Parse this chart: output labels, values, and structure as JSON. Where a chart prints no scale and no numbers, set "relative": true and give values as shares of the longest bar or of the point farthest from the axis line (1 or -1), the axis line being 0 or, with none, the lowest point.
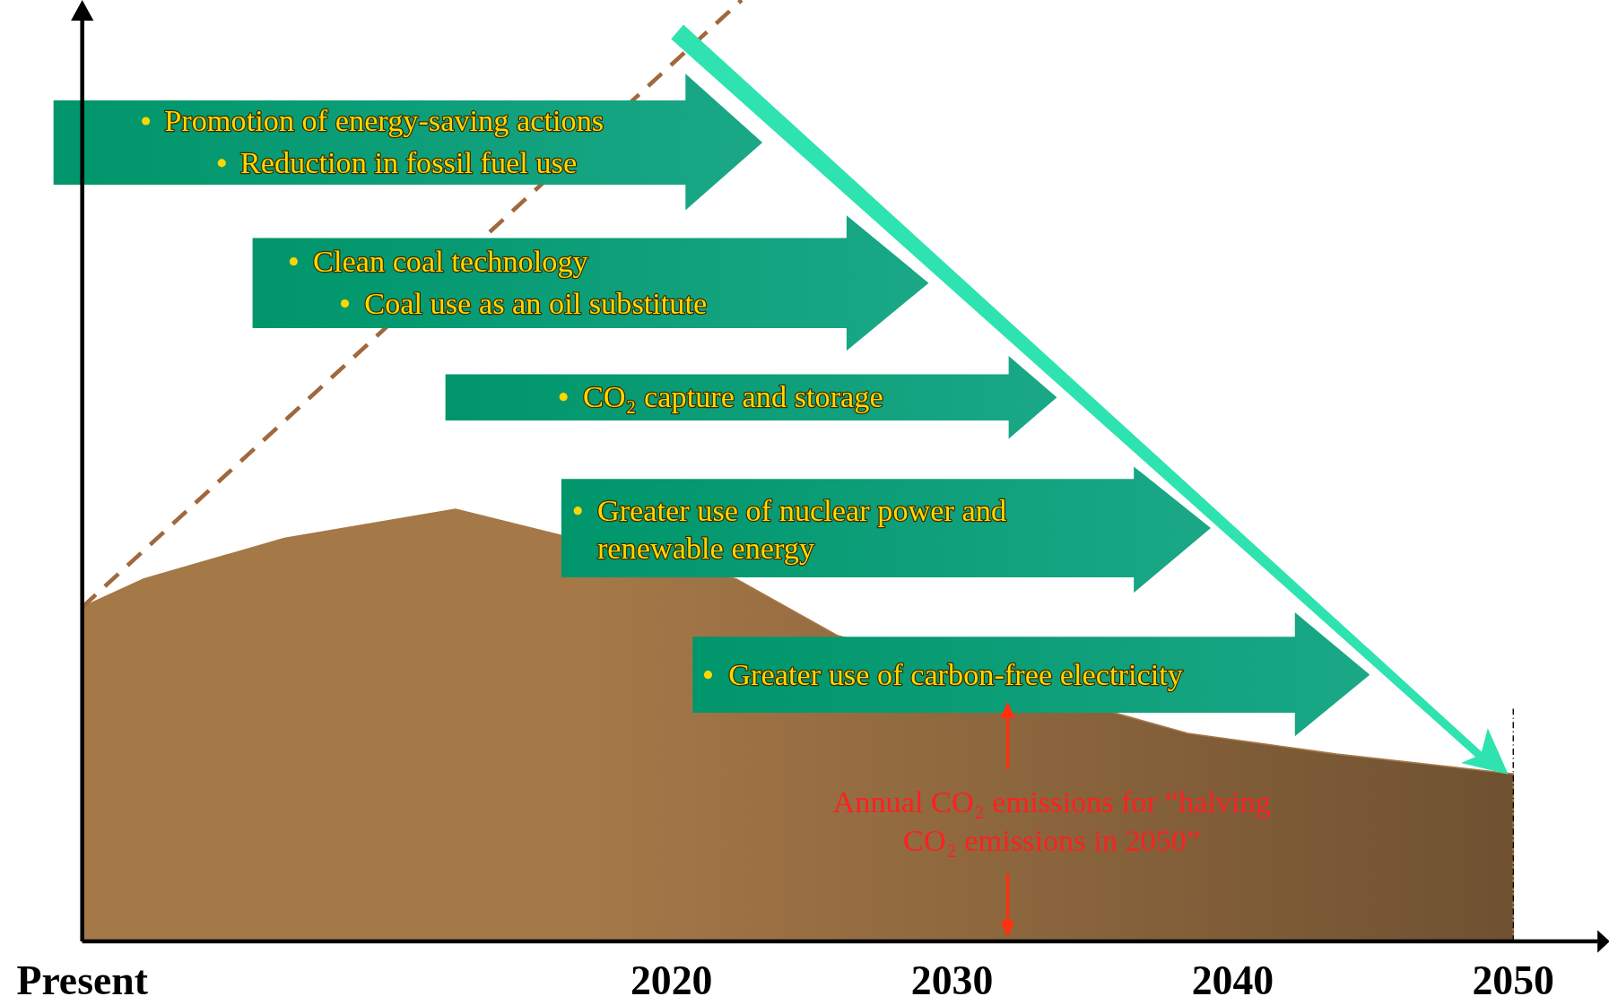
{
  "chart_data": {
    "type": "area",
    "relative": true,
    "tick_labels": "x",
    "xlim": [
      1999,
      2053
    ],
    "xticks": [
      {
        "value": 1999,
        "label": "Present"
      },
      2020,
      2030,
      2040,
      2050
    ],
    "series": [
      {
        "color": "#a57848",
        "x": [
          1999,
          2001.2,
          2006.2,
          2012.3,
          2022.3,
          2025.9,
          2038.4,
          2043.7,
          2050
        ],
        "values": [
          0.355,
          0.385,
          0.428,
          0.459,
          0.385,
          0.325,
          0.221,
          0.199,
          0.178
        ]
      },
      {
        "type": "line",
        "color": "#a0683c",
        "line_style": "dashed",
        "x": [
          1999,
          2022.5
        ],
        "values": [
          0.355,
          1
        ]
      }
    ],
    "ref_lines": [
      {
        "axis": "x",
        "value": 2050,
        "line_style": "dotted",
        "color": "#000000"
      }
    ],
    "annotations": [
      "Promotion of energy-saving actions",
      "Reduction in fossil fuel use",
      "Clean coal technology",
      "Coal use as an oil substitute",
      "CO₂ capture and storage",
      "Greater use of nuclear power and renewable energy",
      "Greater use of carbon-free electricity",
      "Annual CO₂ emissions for “halving CO₂ emissions in 2050”"
    ]
  }
}
